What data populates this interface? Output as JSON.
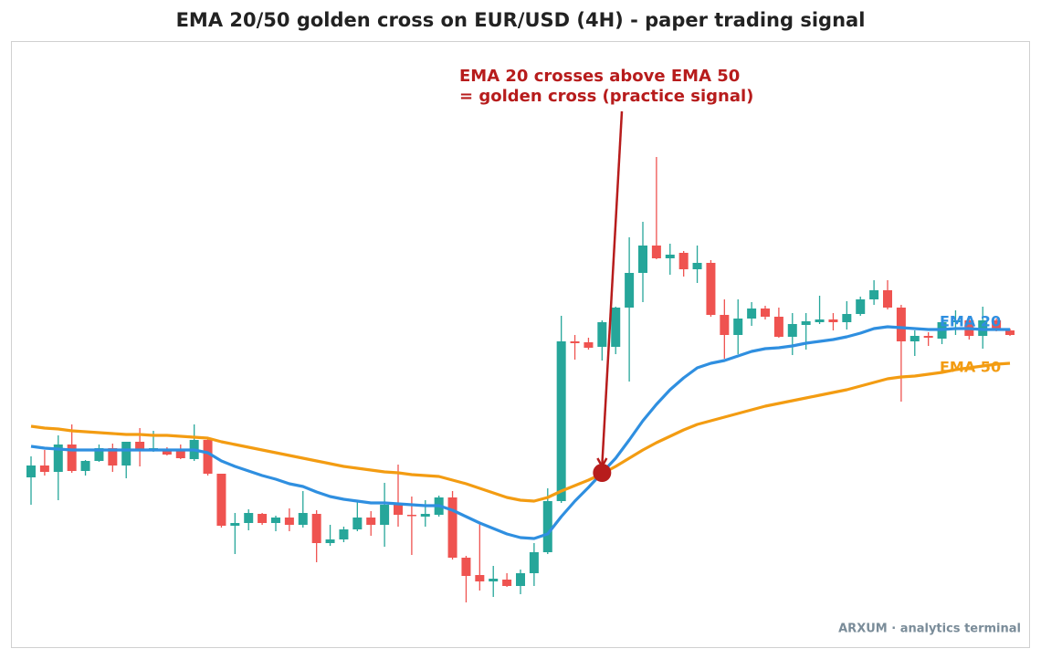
{
  "chart_data": {
    "type": "candlestick",
    "title": "EMA 20/50 golden cross on EUR/USD (4H) - paper trading signal",
    "ylim": [
      0,
      655
    ],
    "up_color": "#26a69a",
    "down_color": "#ef5350",
    "open": [
      177,
      190,
      183,
      213,
      184,
      195,
      209,
      190,
      216,
      207,
      207,
      206,
      197,
      218,
      181,
      124,
      127,
      137,
      127,
      133,
      125,
      137,
      105,
      109,
      120,
      133,
      125,
      147,
      136,
      134,
      136,
      155,
      89,
      70,
      63,
      65,
      58,
      72,
      95,
      151,
      326,
      325,
      320,
      320,
      363,
      401,
      431,
      417,
      423,
      405,
      412,
      355,
      333,
      351,
      362,
      353,
      331,
      344,
      347,
      350,
      347,
      356,
      372,
      382,
      363,
      326,
      332,
      329,
      347,
      349,
      332,
      349,
      338
    ],
    "high": [
      200,
      207,
      223,
      235,
      196,
      213,
      214,
      216,
      231,
      228,
      210,
      213,
      235,
      220,
      181,
      138,
      142,
      138,
      135,
      143,
      162,
      141,
      125,
      123,
      150,
      140,
      171,
      191,
      156,
      152,
      157,
      162,
      91,
      126,
      80,
      72,
      76,
      105,
      165,
      354,
      333,
      330,
      349,
      364,
      440,
      457,
      528,
      433,
      425,
      431,
      415,
      372,
      372,
      369,
      365,
      363,
      357,
      357,
      376,
      357,
      370,
      375,
      393,
      393,
      366,
      338,
      336,
      351,
      360,
      351,
      364,
      351,
      340
    ],
    "low": [
      147,
      179,
      152,
      182,
      179,
      194,
      183,
      176,
      189,
      205,
      201,
      197,
      195,
      179,
      122,
      93,
      119,
      125,
      118,
      118,
      122,
      84,
      102,
      106,
      118,
      113,
      101,
      123,
      92,
      123,
      134,
      87,
      40,
      53,
      46,
      57,
      49,
      58,
      93,
      149,
      306,
      317,
      305,
      312,
      282,
      369,
      416,
      399,
      397,
      390,
      353,
      307,
      312,
      343,
      350,
      330,
      311,
      317,
      345,
      338,
      339,
      354,
      366,
      361,
      260,
      310,
      321,
      323,
      333,
      328,
      318,
      337,
      332
    ],
    "close": [
      190,
      183,
      213,
      184,
      195,
      209,
      190,
      216,
      208,
      209,
      202,
      198,
      218,
      181,
      124,
      127,
      138,
      127,
      133,
      125,
      138,
      105,
      109,
      120,
      133,
      125,
      147,
      136,
      135,
      137,
      155,
      89,
      69,
      63,
      66,
      58,
      72,
      95,
      151,
      326,
      324,
      319,
      347,
      363,
      401,
      431,
      417,
      421,
      405,
      412,
      355,
      333,
      351,
      362,
      353,
      331,
      345,
      348,
      350,
      347,
      356,
      372,
      382,
      363,
      326,
      332,
      330,
      347,
      349,
      332,
      349,
      340,
      333
    ],
    "series": [
      {
        "name": "EMA 20",
        "color": "#2f8fe0",
        "values": [
          211,
          209,
          208,
          207,
          207,
          207,
          207,
          207,
          207,
          207,
          207,
          207,
          207,
          204,
          195,
          189,
          184,
          179,
          175,
          170,
          167,
          161,
          156,
          153,
          151,
          149,
          149,
          148,
          147,
          146,
          146,
          141,
          134,
          127,
          121,
          115,
          111,
          110,
          115,
          134,
          151,
          166,
          182,
          198,
          218,
          239,
          257,
          273,
          286,
          297,
          302,
          305,
          310,
          315,
          318,
          319,
          321,
          324,
          326,
          328,
          331,
          335,
          340,
          342,
          341,
          340,
          339,
          339,
          340,
          340,
          339,
          339,
          339
        ]
      },
      {
        "name": "EMA 50",
        "color": "#f39c12",
        "values": [
          233,
          231,
          230,
          228,
          227,
          226,
          225,
          224,
          224,
          223,
          223,
          222,
          221,
          220,
          216,
          213,
          210,
          207,
          204,
          201,
          198,
          195,
          192,
          189,
          187,
          185,
          183,
          182,
          180,
          179,
          178,
          174,
          170,
          165,
          160,
          155,
          152,
          151,
          155,
          162,
          168,
          174,
          181,
          189,
          198,
          207,
          215,
          222,
          229,
          235,
          239,
          243,
          247,
          251,
          255,
          258,
          261,
          264,
          267,
          270,
          273,
          277,
          281,
          285,
          287,
          288,
          290,
          292,
          295,
          297,
          299,
          301,
          302
        ]
      }
    ],
    "annotation": {
      "text": [
        "EMA 20 crosses above EMA 50",
        "= golden cross (practice signal)"
      ],
      "x": 42,
      "y": 182,
      "color": "#b71c1c"
    },
    "footer": "ARXUM · analytics terminal"
  }
}
